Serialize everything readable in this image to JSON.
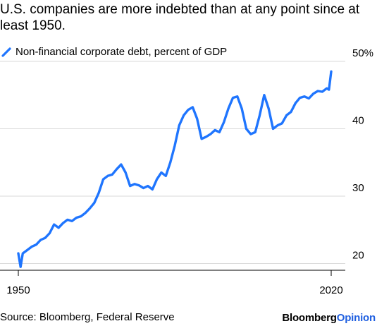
{
  "header": {
    "title": "U.S. companies are more indebted than at any point since at least 1950."
  },
  "legend": {
    "label": "Non-financial corporate debt, percent of GDP",
    "color": "#1f75fe"
  },
  "footer": {
    "source": "Source: Bloomberg, Federal Reserve",
    "brand_part1": "Bloomberg",
    "brand_part2": "Opinion"
  },
  "chart_data": {
    "type": "line",
    "title": "U.S. companies are more indebted than at any point since at least 1950.",
    "xlabel": "",
    "ylabel": "",
    "xlim": [
      1950,
      2020
    ],
    "ylim": [
      19,
      50
    ],
    "x_ticks": [
      1950,
      2020
    ],
    "x_tick_labels": [
      "1950",
      "2020"
    ],
    "y_ticks": [
      20,
      30,
      40,
      50
    ],
    "y_tick_labels": [
      "20",
      "30",
      "40",
      "50%"
    ],
    "grid": true,
    "legend_position": "top-left",
    "series": [
      {
        "name": "Non-financial corporate debt, percent of GDP",
        "color": "#1f75fe",
        "x": [
          1950.0,
          1950.5,
          1951.0,
          1952.0,
          1953.0,
          1954.0,
          1955.0,
          1956.0,
          1957.0,
          1958.0,
          1959.0,
          1960.0,
          1961.0,
          1962.0,
          1963.0,
          1964.0,
          1965.0,
          1966.0,
          1967.0,
          1968.0,
          1969.0,
          1970.0,
          1971.0,
          1972.0,
          1973.0,
          1974.0,
          1975.0,
          1976.0,
          1977.0,
          1978.0,
          1979.0,
          1980.0,
          1981.0,
          1982.0,
          1983.0,
          1984.0,
          1985.0,
          1986.0,
          1987.0,
          1988.0,
          1989.0,
          1990.0,
          1991.0,
          1992.0,
          1993.0,
          1994.0,
          1995.0,
          1996.0,
          1997.0,
          1998.0,
          1999.0,
          2000.0,
          2001.0,
          2002.0,
          2003.0,
          2004.0,
          2005.0,
          2006.0,
          2007.0,
          2008.0,
          2009.0,
          2010.0,
          2011.0,
          2012.0,
          2013.0,
          2014.0,
          2015.0,
          2016.0,
          2017.0,
          2018.0,
          2019.0,
          2019.5,
          2020.0
        ],
        "values": [
          21.5,
          19.5,
          21.5,
          22.0,
          22.5,
          22.8,
          23.5,
          23.8,
          24.5,
          25.8,
          25.3,
          26.0,
          26.5,
          26.3,
          26.8,
          27.0,
          27.5,
          28.2,
          29.0,
          30.5,
          32.5,
          33.0,
          33.2,
          34.0,
          34.7,
          33.5,
          31.5,
          31.8,
          31.6,
          31.2,
          31.5,
          31.0,
          32.5,
          33.5,
          33.0,
          35.0,
          37.5,
          40.5,
          42.0,
          42.8,
          43.2,
          41.5,
          38.5,
          38.8,
          39.2,
          39.8,
          39.5,
          41.0,
          43.0,
          44.6,
          44.8,
          43.0,
          40.0,
          39.2,
          39.5,
          42.0,
          45.0,
          43.0,
          40.0,
          40.5,
          40.8,
          42.0,
          42.5,
          43.8,
          44.6,
          44.8,
          44.5,
          45.2,
          45.6,
          45.5,
          46.0,
          45.8,
          48.5
        ]
      }
    ]
  }
}
